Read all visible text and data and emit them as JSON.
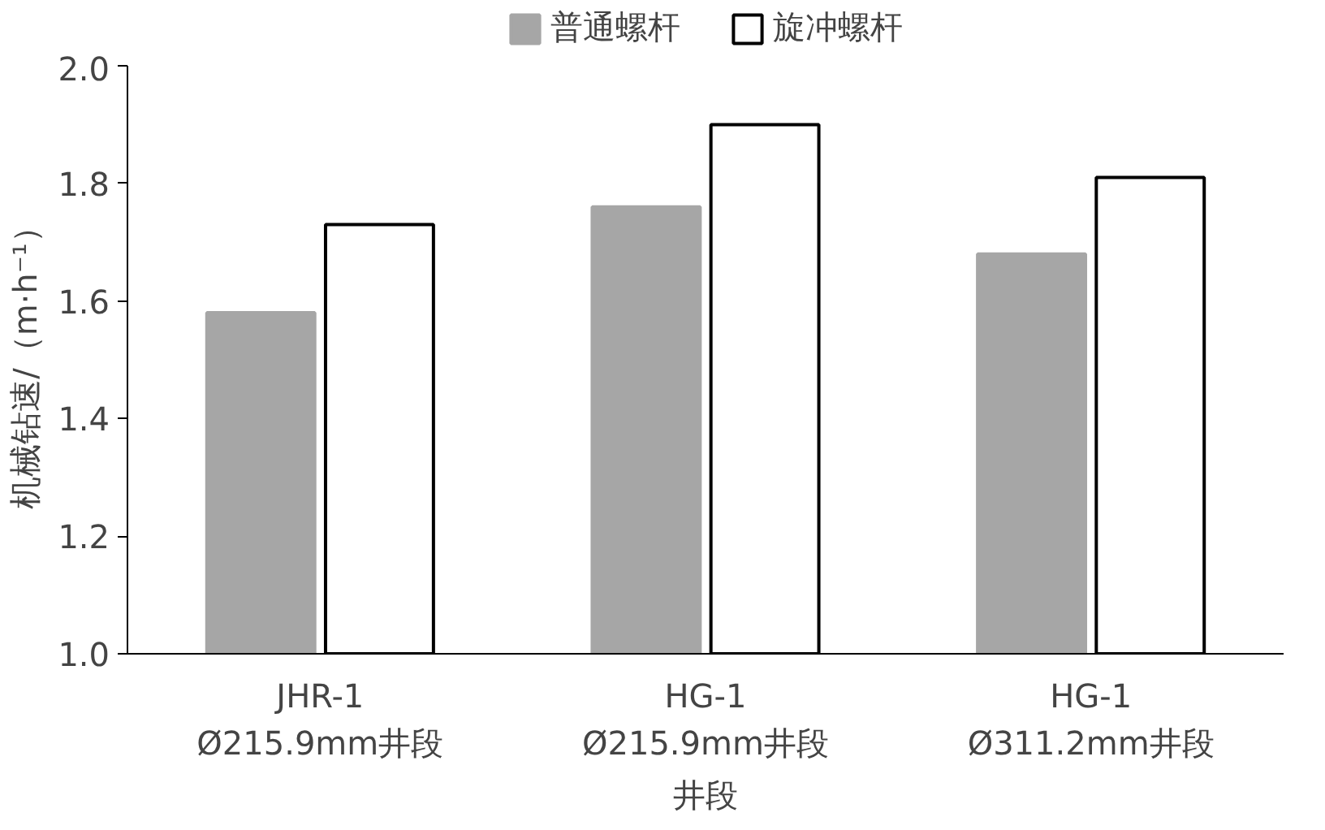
{
  "chart_data": {
    "type": "bar",
    "xlabel": "井段",
    "ylabel": "机械钻速/（m·h⁻¹）",
    "categories": [
      "JHR-1\nØ215.9mm井段",
      "HG-1\nØ215.9mm井段",
      "HG-1\nØ311.2mm井段"
    ],
    "series": [
      {
        "name": "普通螺杆",
        "color": "#a6a6a6",
        "values": [
          1.58,
          1.76,
          1.68
        ]
      },
      {
        "name": "旋冲螺杆",
        "color": "#ffffff",
        "values": [
          1.73,
          1.9,
          1.81
        ]
      }
    ],
    "ylim": [
      1.0,
      2.0
    ],
    "yticks": [
      {
        "value": 1.0,
        "label": "1.0"
      },
      {
        "value": 1.2,
        "label": "1.2"
      },
      {
        "value": 1.4,
        "label": "1.4"
      },
      {
        "value": 1.6,
        "label": "1.6"
      },
      {
        "value": 1.8,
        "label": "1.8"
      },
      {
        "value": 2.0,
        "label": "2.0"
      }
    ],
    "legend": "top"
  }
}
